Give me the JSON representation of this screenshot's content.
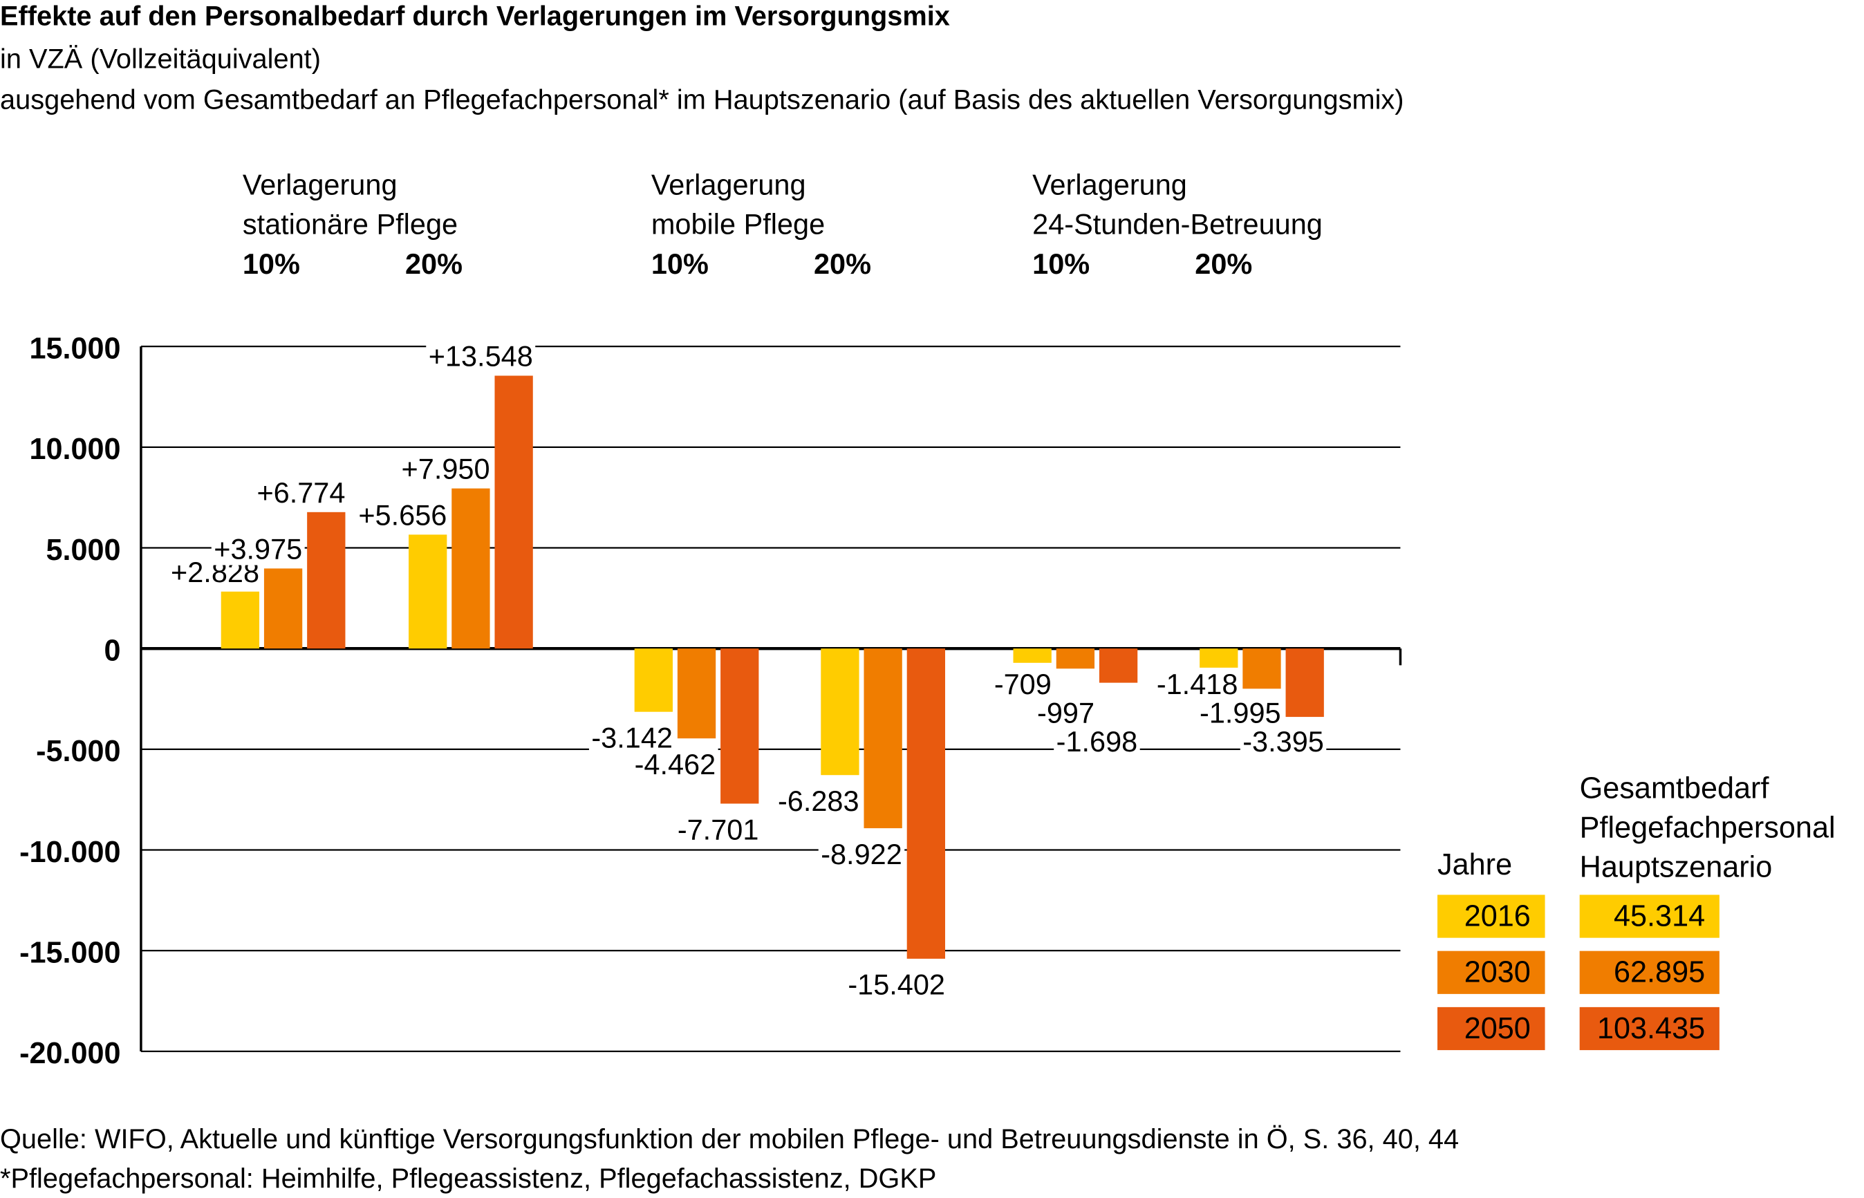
{
  "title": "Effekte auf den Personalbedarf durch Verlagerungen im Versorgungsmix",
  "subtitle1": "in VZÄ (Vollzeitäquivalent)",
  "subtitle2": "ausgehend vom Gesamtbedarf an Pflegefachpersonal* im Hauptszenario (auf Basis des aktuellen Versorgungsmix)",
  "groups": [
    {
      "line1": "Verlagerung",
      "line2": "stationäre Pflege",
      "p1": "10%",
      "p2": "20%"
    },
    {
      "line1": "Verlagerung",
      "line2": "mobile Pflege",
      "p1": "10%",
      "p2": "20%"
    },
    {
      "line1": "Verlagerung",
      "line2": "24-Stunden-Betreuung",
      "p1": "10%",
      "p2": "20%"
    }
  ],
  "legend": {
    "years_title": "Jahre",
    "total_title1": "Gesamtbedarf",
    "total_title2": "Pflegefachpersonal",
    "total_title3": "Hauptszenario",
    "rows": [
      {
        "year": "2016",
        "total": "45.314",
        "color": "#FFCC00"
      },
      {
        "year": "2030",
        "total": "62.895",
        "color": "#F07D00"
      },
      {
        "year": "2050",
        "total": "103.435",
        "color": "#E85A0F"
      }
    ]
  },
  "footer1": "Quelle: WIFO, Aktuelle und künftige Versorgungsfunktion der mobilen Pflege- und Betreuungsdienste in Ö, S. 36, 40, 44",
  "footer2": "*Pflegefachpersonal: Heimhilfe, Pflegeassistenz, Pflegefachassistenz, DGKP",
  "chart_data": {
    "type": "bar",
    "title": "Effekte auf den Personalbedarf durch Verlagerungen im Versorgungsmix",
    "ylabel": "VZÄ",
    "ylim": [
      -20000,
      15000
    ],
    "yticks": [
      15000,
      10000,
      5000,
      0,
      -5000,
      -10000,
      -15000,
      -20000
    ],
    "ytick_labels": [
      "15.000",
      "10.000",
      "5.000",
      "0",
      "-5.000",
      "-10.000",
      "-15.000",
      "-20.000"
    ],
    "grid": true,
    "categories": [
      "stationäre Pflege 10%",
      "stationäre Pflege 20%",
      "mobile Pflege 10%",
      "mobile Pflege 20%",
      "24-Stunden-Betreuung 10%",
      "24-Stunden-Betreuung 20%"
    ],
    "series": [
      {
        "name": "2016",
        "color": "#FFCC00",
        "values": [
          2828,
          5656,
          -3142,
          -6283,
          -709,
          -1418
        ],
        "labels": [
          "+2.828",
          "+5.656",
          "-3.142",
          "-6.283",
          "-709",
          "-1.418"
        ]
      },
      {
        "name": "2030",
        "color": "#F07D00",
        "values": [
          3975,
          7950,
          -4462,
          -8922,
          -997,
          -1995
        ],
        "labels": [
          "+3.975",
          "+7.950",
          "-4.462",
          "-8.922",
          "-997",
          "-1.995"
        ]
      },
      {
        "name": "2050",
        "color": "#E85A0F",
        "values": [
          6774,
          13548,
          -7701,
          -15402,
          -1698,
          -3395
        ],
        "labels": [
          "+6.774",
          "+13.548",
          "-7.701",
          "-15.402",
          "-1.698",
          "-3.395"
        ]
      }
    ],
    "legend": "right"
  }
}
